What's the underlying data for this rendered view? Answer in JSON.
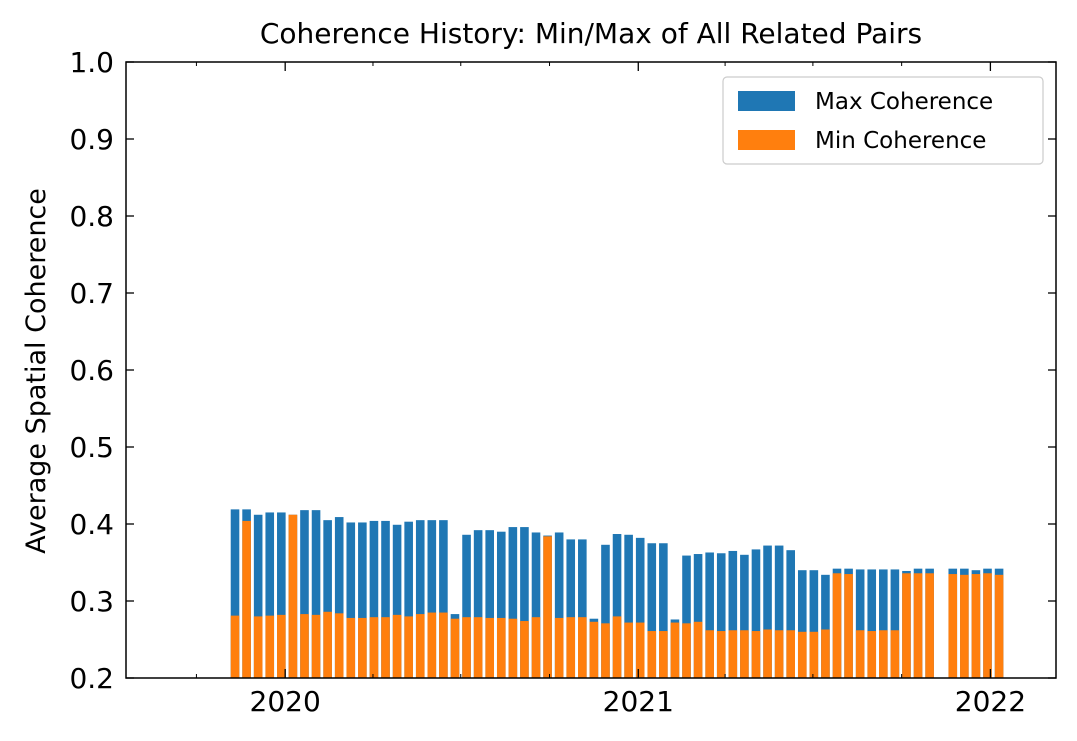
{
  "chart_data": {
    "type": "bar",
    "title": "Coherence History: Min/Max of All Related Pairs",
    "xlabel": "",
    "ylabel": "Average Spatial Coherence",
    "ylim": [
      0.2,
      1.0
    ],
    "xlim": [
      "2019-07-20",
      "2022-03-10"
    ],
    "yticks": [
      "0.2",
      "0.3",
      "0.4",
      "0.5",
      "0.6",
      "0.7",
      "0.8",
      "0.9",
      "1.0"
    ],
    "xticks": [
      {
        "label": "2020",
        "date": "2020-01-01"
      },
      {
        "label": "2021",
        "date": "2021-01-01"
      },
      {
        "label": "2022",
        "date": "2022-01-01"
      }
    ],
    "legend": {
      "placement": "top-right"
    },
    "colors": {
      "max": "#1f77b4",
      "min": "#ff7f0e"
    },
    "series": [
      {
        "name": "Max Coherence",
        "color": "#1f77b4",
        "values": [
          0.419,
          0.419,
          0.412,
          0.415,
          0.415,
          0.412,
          0.418,
          0.418,
          0.405,
          0.409,
          0.402,
          0.402,
          0.404,
          0.404,
          0.399,
          0.403,
          0.405,
          0.405,
          0.405,
          0.283,
          0.386,
          0.392,
          0.392,
          0.39,
          0.396,
          0.396,
          0.389,
          0.385,
          0.389,
          0.38,
          0.38,
          0.277,
          0.373,
          0.387,
          0.386,
          0.382,
          0.375,
          0.375,
          0.276,
          0.359,
          0.361,
          0.363,
          0.362,
          0.365,
          0.36,
          0.367,
          0.372,
          0.372,
          0.366,
          0.34,
          0.34,
          0.334,
          0.342,
          0.342,
          0.341,
          0.341,
          0.341,
          0.341,
          0.339,
          0.342,
          0.342,
          0.342,
          0.342,
          0.34,
          0.342,
          0.342
        ]
      },
      {
        "name": "Min Coherence",
        "color": "#ff7f0e",
        "values": [
          0.281,
          0.404,
          0.28,
          0.281,
          0.282,
          0.412,
          0.283,
          0.282,
          0.286,
          0.284,
          0.278,
          0.278,
          0.279,
          0.279,
          0.282,
          0.28,
          0.283,
          0.285,
          0.285,
          0.277,
          0.279,
          0.279,
          0.278,
          0.278,
          0.277,
          0.274,
          0.279,
          0.384,
          0.278,
          0.279,
          0.279,
          0.273,
          0.271,
          0.28,
          0.272,
          0.272,
          0.261,
          0.261,
          0.272,
          0.271,
          0.273,
          0.262,
          0.261,
          0.262,
          0.262,
          0.261,
          0.263,
          0.262,
          0.262,
          0.26,
          0.26,
          0.263,
          0.336,
          0.335,
          0.262,
          0.261,
          0.262,
          0.262,
          0.336,
          0.336,
          0.336,
          0.335,
          0.334,
          0.335,
          0.336,
          0.334
        ]
      }
    ],
    "dates": [
      "2019-11-10",
      "2019-11-22",
      "2019-12-04",
      "2019-12-16",
      "2019-12-28",
      "2020-01-09",
      "2020-01-21",
      "2020-02-02",
      "2020-02-14",
      "2020-02-26",
      "2020-03-09",
      "2020-03-21",
      "2020-04-02",
      "2020-04-14",
      "2020-04-26",
      "2020-05-08",
      "2020-05-20",
      "2020-06-01",
      "2020-06-13",
      "2020-06-25",
      "2020-07-07",
      "2020-07-19",
      "2020-07-31",
      "2020-08-12",
      "2020-08-24",
      "2020-09-05",
      "2020-09-17",
      "2020-09-29",
      "2020-10-11",
      "2020-10-23",
      "2020-11-04",
      "2020-11-16",
      "2020-11-28",
      "2020-12-10",
      "2020-12-22",
      "2021-01-03",
      "2021-01-15",
      "2021-01-27",
      "2021-02-08",
      "2021-02-20",
      "2021-03-04",
      "2021-03-16",
      "2021-03-28",
      "2021-04-09",
      "2021-04-21",
      "2021-05-03",
      "2021-05-15",
      "2021-05-27",
      "2021-06-08",
      "2021-06-20",
      "2021-07-02",
      "2021-07-14",
      "2021-07-26",
      "2021-08-07",
      "2021-08-19",
      "2021-08-31",
      "2021-09-12",
      "2021-09-24",
      "2021-10-06",
      "2021-10-18",
      "2021-10-30",
      "2021-11-23",
      "2021-12-05",
      "2021-12-17",
      "2021-12-29",
      "2022-01-10"
    ]
  }
}
